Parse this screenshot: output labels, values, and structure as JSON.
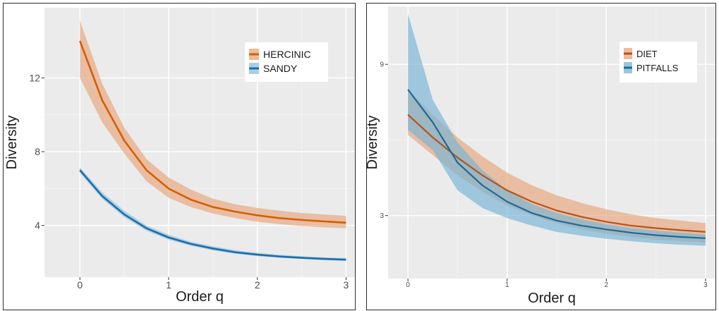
{
  "chart_data": [
    {
      "type": "line",
      "title": "",
      "xlabel": "Order q",
      "ylabel": "Diversity",
      "xlim": [
        -0.4,
        3.1
      ],
      "ylim": [
        1.2,
        15.8
      ],
      "xticks": [
        0,
        1,
        2,
        3
      ],
      "xtick_labels": [
        "0",
        "1",
        "2",
        "3"
      ],
      "yticks": [
        4,
        8,
        12
      ],
      "ytick_labels": [
        "4",
        "8",
        "12"
      ],
      "grid": true,
      "legend_position": "top-right",
      "x": [
        0,
        0.25,
        0.5,
        0.75,
        1,
        1.25,
        1.5,
        1.75,
        2,
        2.25,
        2.5,
        2.75,
        3
      ],
      "series": [
        {
          "name": "HERCINIC",
          "color": "#d55e00",
          "band_color": "#e8a579",
          "values": [
            14.0,
            10.8,
            8.6,
            7.0,
            6.0,
            5.4,
            5.0,
            4.75,
            4.55,
            4.4,
            4.3,
            4.22,
            4.15
          ],
          "lower": [
            12.0,
            9.6,
            7.9,
            6.4,
            5.5,
            5.0,
            4.65,
            4.4,
            4.2,
            4.07,
            3.97,
            3.9,
            3.85
          ],
          "upper": [
            15.1,
            11.7,
            9.3,
            7.6,
            6.6,
            5.95,
            5.45,
            5.15,
            4.95,
            4.8,
            4.68,
            4.6,
            4.52
          ]
        },
        {
          "name": "SANDY",
          "color": "#1c6fab",
          "band_color": "#8fbfdf",
          "values": [
            7.0,
            5.6,
            4.6,
            3.85,
            3.35,
            3.0,
            2.75,
            2.55,
            2.42,
            2.32,
            2.25,
            2.19,
            2.15
          ],
          "lower": [
            6.85,
            5.45,
            4.45,
            3.72,
            3.23,
            2.9,
            2.65,
            2.47,
            2.34,
            2.25,
            2.18,
            2.12,
            2.08
          ],
          "upper": [
            7.15,
            5.8,
            4.8,
            4.0,
            3.5,
            3.12,
            2.87,
            2.66,
            2.52,
            2.41,
            2.33,
            2.27,
            2.23
          ]
        }
      ]
    },
    {
      "type": "line",
      "title": "",
      "xlabel": "Order q",
      "ylabel": "Diversity",
      "xlim": [
        -0.2,
        3.1
      ],
      "ylim": [
        0.5,
        11.3
      ],
      "xticks": [
        0,
        1,
        2,
        3
      ],
      "xtick_labels": [
        "0",
        "1",
        "2",
        "3"
      ],
      "yticks": [
        3,
        9
      ],
      "ytick_labels": [
        "3",
        "9"
      ],
      "grid": true,
      "legend_position": "top-right",
      "x": [
        0,
        0.25,
        0.5,
        0.75,
        1,
        1.25,
        1.5,
        1.75,
        2,
        2.25,
        2.5,
        2.75,
        3
      ],
      "series": [
        {
          "name": "DIET",
          "color": "#b5541c",
          "band_color": "#e8a579",
          "values": [
            7.0,
            6.1,
            5.3,
            4.6,
            4.0,
            3.55,
            3.2,
            2.95,
            2.75,
            2.6,
            2.5,
            2.42,
            2.35
          ],
          "lower": [
            6.2,
            5.4,
            4.6,
            3.95,
            3.4,
            3.0,
            2.7,
            2.45,
            2.28,
            2.15,
            2.05,
            1.98,
            1.92
          ],
          "upper": [
            8.0,
            7.0,
            6.1,
            5.35,
            4.7,
            4.2,
            3.8,
            3.5,
            3.25,
            3.05,
            2.9,
            2.8,
            2.7
          ]
        },
        {
          "name": "PITFALLS",
          "color": "#1f6a95",
          "band_color": "#74b4d6",
          "values": [
            8.0,
            6.7,
            5.1,
            4.2,
            3.55,
            3.1,
            2.8,
            2.6,
            2.45,
            2.32,
            2.22,
            2.15,
            2.1
          ],
          "lower": [
            6.4,
            5.6,
            4.0,
            3.3,
            2.9,
            2.6,
            2.35,
            2.2,
            2.08,
            1.98,
            1.9,
            1.84,
            1.8
          ],
          "upper": [
            11.0,
            7.6,
            5.9,
            4.8,
            4.0,
            3.45,
            3.1,
            2.85,
            2.65,
            2.5,
            2.4,
            2.32,
            2.25
          ]
        }
      ]
    }
  ]
}
